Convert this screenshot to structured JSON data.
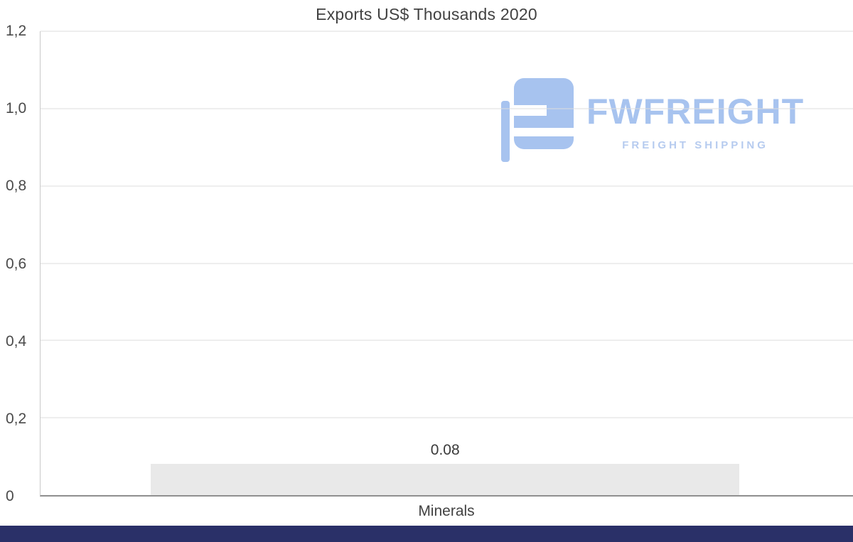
{
  "chart_data": {
    "type": "bar",
    "title": "Exports US$ Thousands 2020",
    "categories": [
      "Minerals"
    ],
    "values": [
      0.08
    ],
    "data_labels": [
      "0.08"
    ],
    "xlabel": "",
    "ylabel": "",
    "ylim": [
      0,
      1.2
    ],
    "yticks": [
      {
        "value": 0,
        "label": "0"
      },
      {
        "value": 0.2,
        "label": "0,2"
      },
      {
        "value": 0.4,
        "label": "0,4"
      },
      {
        "value": 0.6,
        "label": "0,6"
      },
      {
        "value": 0.8,
        "label": "0,8"
      },
      {
        "value": 1.0,
        "label": "1,0"
      },
      {
        "value": 1.2,
        "label": "1,2"
      }
    ],
    "grid": true,
    "legend": false,
    "bar_color": "#e9e9e9"
  },
  "watermark": {
    "brand": "FWFREIGHT",
    "tagline": "FREIGHT SHIPPING",
    "color": "#a7c3ef",
    "tagline_color": "#b0c7ee"
  },
  "colors": {
    "footer": "#2a3068",
    "grid": "#dcdcdc",
    "title_text": "#424242"
  }
}
